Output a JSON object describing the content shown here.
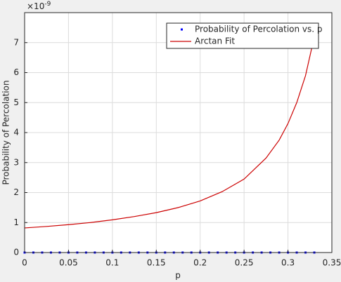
{
  "chart_data": {
    "type": "line",
    "xlabel": "p",
    "ylabel": "Probability of Percolation",
    "y_multiplier": {
      "base": "×10",
      "exponent": "-9"
    },
    "xlim": [
      0,
      0.35
    ],
    "xticks": [
      0,
      0.05,
      0.1,
      0.15,
      0.2,
      0.25,
      0.3,
      0.35
    ],
    "ylim": [
      0,
      8
    ],
    "yticks": [
      0,
      1,
      2,
      3,
      4,
      5,
      6,
      7
    ],
    "grid": true,
    "legend": "northeast",
    "series": [
      {
        "name": "Probability of Percolation vs. p",
        "color": "#0000ff",
        "style": "markers",
        "x": [
          0,
          0.01,
          0.02,
          0.03,
          0.04,
          0.05,
          0.06,
          0.07,
          0.08,
          0.09,
          0.1,
          0.11,
          0.12,
          0.13,
          0.14,
          0.15,
          0.16,
          0.17,
          0.18,
          0.19,
          0.2,
          0.21,
          0.22,
          0.23,
          0.24,
          0.25,
          0.26,
          0.27,
          0.28,
          0.29,
          0.3,
          0.31,
          0.32,
          0.33
        ],
        "values": [
          0,
          0,
          0,
          0,
          0,
          0,
          0,
          0,
          0,
          0,
          0,
          0,
          0,
          0,
          0,
          0,
          0,
          0,
          0,
          0,
          0,
          0,
          0,
          0,
          0,
          0,
          0,
          0,
          0,
          0,
          0,
          0,
          0,
          0
        ]
      },
      {
        "name": "Arctan Fit",
        "color": "#cc0000",
        "style": "line",
        "x": [
          0,
          0.025,
          0.05,
          0.075,
          0.1,
          0.125,
          0.15,
          0.175,
          0.2,
          0.225,
          0.25,
          0.275,
          0.29,
          0.3,
          0.31,
          0.32,
          0.33
        ],
        "values": [
          0.82,
          0.87,
          0.93,
          1.0,
          1.09,
          1.2,
          1.33,
          1.5,
          1.72,
          2.03,
          2.45,
          3.15,
          3.75,
          4.3,
          5.0,
          5.9,
          7.2
        ]
      }
    ]
  }
}
